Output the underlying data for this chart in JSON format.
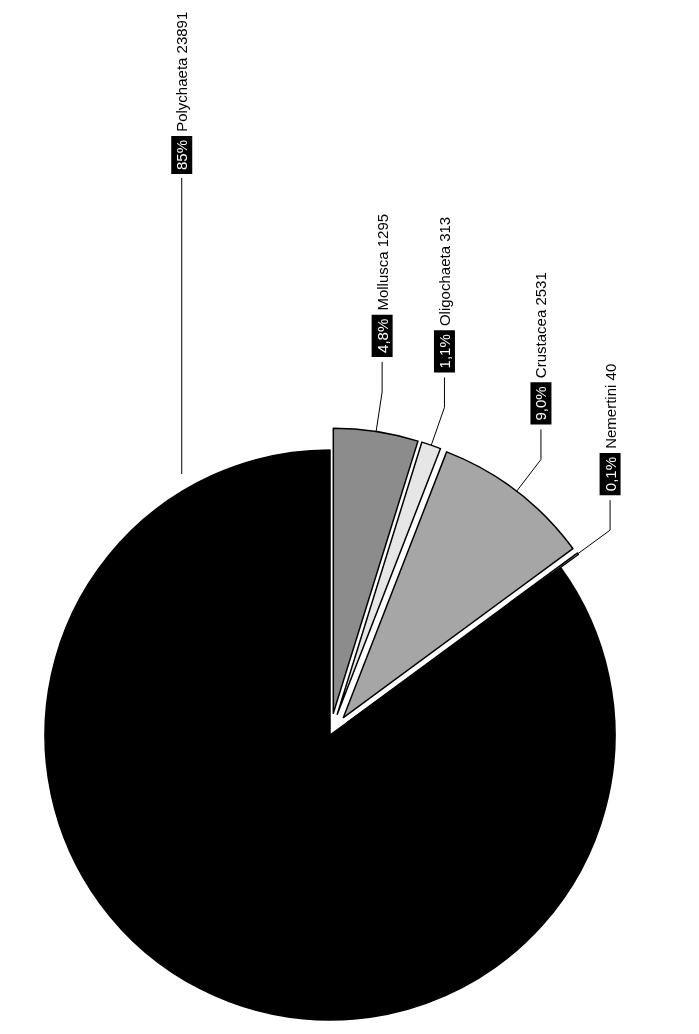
{
  "chart_data": {
    "type": "pie",
    "categories": [
      "Polychaeta 23891",
      "Mollusca 1295",
      "Oligochaeta 313",
      "Crustacea 2531",
      "Nemertini 40"
    ],
    "values": [
      85,
      4.8,
      1.1,
      9.0,
      0.1
    ],
    "value_labels": [
      "85%",
      "4,8%",
      "1,1%",
      "9,0%",
      "0,1%"
    ],
    "colors": [
      "#000000",
      "#8c8c8c",
      "#e6e6e6",
      "#a6a6a6",
      "#ffffff"
    ]
  }
}
